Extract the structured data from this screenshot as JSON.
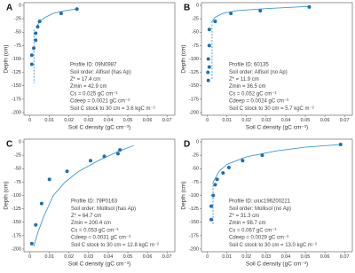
{
  "chart_data": [
    {
      "type": "scatter",
      "panel_label": "A",
      "xlabel": "Soil C density (gC cm⁻³)",
      "ylabel": "Depth (cm)",
      "xlim": [
        -0.003,
        0.074
      ],
      "ylim": [
        -205,
        5
      ],
      "xticks": [
        0,
        0.01,
        0.02,
        0.03,
        0.04,
        0.05,
        0.06,
        0.07
      ],
      "yticks": [
        0,
        -25,
        -50,
        -75,
        -100,
        -125,
        -150,
        -175,
        -200
      ],
      "color": "#1f6fb2",
      "curve_color": "#3a9ad9",
      "x": [
        0.024,
        0.016,
        0.005,
        0.004,
        0.003,
        0.003,
        0.002,
        0.001,
        0.001
      ],
      "y": [
        -7,
        -15,
        -30,
        -40,
        -52,
        -65,
        -80,
        -93,
        -110
      ],
      "curve": {
        "x": [
          0.0035,
          0.005,
          0.008,
          0.012,
          0.018,
          0.025
        ],
        "y": [
          -40,
          -30,
          -22,
          -15,
          -10,
          -6
        ]
      },
      "deep_line": {
        "x": [
          0.0021,
          0.0021
        ],
        "y": [
          -45,
          -145
        ]
      },
      "annotations": [
        "Profile ID: 09N0987",
        "Soil order: Alfisol (has Ap)",
        "Z* = 17.4 cm",
        "Zmin = 42.9 cm",
        "Cs = 0.025 gC cm⁻³",
        "Cdeep = 0.0021 gC cm⁻³",
        "Soil C stock to 30 cm = 3.6 kgC m⁻²"
      ]
    },
    {
      "type": "scatter",
      "panel_label": "B",
      "xlabel": "Soil C density (gC cm⁻³)",
      "ylabel": "Depth (cm)",
      "xlim": [
        -0.003,
        0.074
      ],
      "ylim": [
        -205,
        5
      ],
      "xticks": [
        0,
        0.01,
        0.02,
        0.03,
        0.04,
        0.05,
        0.06,
        0.07
      ],
      "yticks": [
        0,
        -25,
        -50,
        -75,
        -100,
        -125,
        -150,
        -175,
        -200
      ],
      "color": "#1f6fb2",
      "curve_color": "#3a9ad9",
      "x": [
        0.052,
        0.027,
        0.012,
        0.004,
        0.001,
        0.001,
        0.0005,
        0.001,
        0.0003,
        0.0005
      ],
      "y": [
        -3,
        -10,
        -15,
        -30,
        -45,
        -75,
        -100,
        -115,
        -125,
        -140
      ],
      "curve": {
        "x": [
          0.0025,
          0.004,
          0.008,
          0.015,
          0.03,
          0.052
        ],
        "y": [
          -30,
          -22,
          -15,
          -10,
          -6,
          -2
        ]
      },
      "deep_line": {
        "x": [
          0.0024,
          0.0024
        ],
        "y": [
          -30,
          -140
        ]
      },
      "annotations": [
        "Profile ID: 60135",
        "Soil order: Alfisol (no Ap)",
        "Z* = 11.9 cm",
        "Zmin = 36.5 cm",
        "Cs = 0.052 gC cm⁻³",
        "Cdeep = 0.0024 gC cm⁻³",
        "Soil C stock to 30 cm = 5.7 kgC m⁻²"
      ]
    },
    {
      "type": "scatter",
      "panel_label": "C",
      "xlabel": "Soil C density (gC cm⁻³)",
      "ylabel": "Depth (cm)",
      "xlim": [
        -0.003,
        0.074
      ],
      "ylim": [
        -205,
        5
      ],
      "xticks": [
        0,
        0.01,
        0.02,
        0.03,
        0.04,
        0.05,
        0.06,
        0.07
      ],
      "yticks": [
        0,
        -25,
        -50,
        -75,
        -100,
        -125,
        -150,
        -175,
        -200
      ],
      "color": "#1f6fb2",
      "curve_color": "#3a9ad9",
      "x": [
        0.046,
        0.045,
        0.038,
        0.031,
        0.019,
        0.01,
        0.006,
        0.003,
        0.001
      ],
      "y": [
        -15,
        -22,
        -27,
        -35,
        -55,
        -70,
        -115,
        -155,
        -190
      ],
      "curve": {
        "x": [
          0.002,
          0.004,
          0.007,
          0.012,
          0.018,
          0.025,
          0.035,
          0.045,
          0.053
        ],
        "y": [
          -195,
          -170,
          -140,
          -100,
          -75,
          -55,
          -35,
          -18,
          -7
        ]
      },
      "annotations": [
        "Profile ID: 79P0163",
        "Soil order: Mollisol (has Ap)",
        "Z* = 64.7 cm",
        "Zmin = 200.4 cm",
        "Cs = 0.053 gC cm⁻³",
        "Cdeep = 0.0031 gC cm⁻³",
        "Soil C stock to 30 cm = 12.8 kgC m⁻²"
      ]
    },
    {
      "type": "scatter",
      "panel_label": "D",
      "xlabel": "Soil C density (gC cm⁻³)",
      "ylabel": "Depth (cm)",
      "xlim": [
        -0.003,
        0.074
      ],
      "ylim": [
        -205,
        5
      ],
      "xticks": [
        0,
        0.01,
        0.02,
        0.03,
        0.04,
        0.05,
        0.06,
        0.07
      ],
      "yticks": [
        0,
        -25,
        -50,
        -75,
        -100,
        -125,
        -150,
        -175,
        -200
      ],
      "color": "#1f6fb2",
      "curve_color": "#3a9ad9",
      "x": [
        0.068,
        0.028,
        0.018,
        0.011,
        0.008,
        0.005,
        0.004,
        0.003,
        0.002,
        0.002
      ],
      "y": [
        -5,
        -25,
        -35,
        -48,
        -58,
        -70,
        -80,
        -100,
        -120,
        -145
      ],
      "curve": {
        "x": [
          0.003,
          0.006,
          0.01,
          0.02,
          0.035,
          0.05,
          0.068
        ],
        "y": [
          -75,
          -55,
          -42,
          -28,
          -17,
          -10,
          -5
        ]
      },
      "deep_line": {
        "x": [
          0.0029,
          0.0029
        ],
        "y": [
          -75,
          -155
        ]
      },
      "annotations": [
        "Profile ID: uiuc196200221",
        "Soil order: Mollisol (no Ap)",
        "Z* = 31.3 cm",
        "Zmin = 98.7 cm",
        "Cs = 0.067 gC cm⁻³",
        "Cdeep = 0.0029 gC cm⁻³",
        "Soil C stock to 30 cm = 13.0 kgC m⁻²"
      ]
    }
  ]
}
